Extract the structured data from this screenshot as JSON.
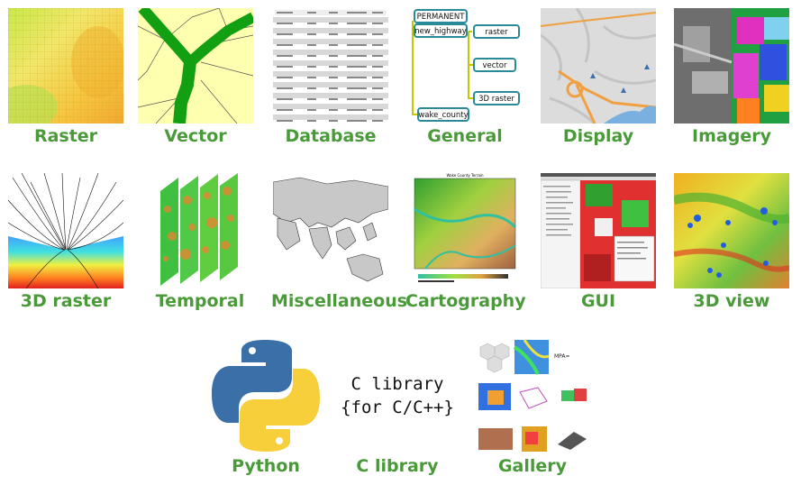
{
  "tiles_row1": [
    {
      "label": "Raster",
      "icon": "raster-grid-icon"
    },
    {
      "label": "Vector",
      "icon": "vector-network-icon"
    },
    {
      "label": "Database",
      "icon": "attribute-table-icon"
    },
    {
      "label": "General",
      "icon": "mapset-tree-icon"
    },
    {
      "label": "Display",
      "icon": "map-display-icon"
    },
    {
      "label": "Imagery",
      "icon": "satellite-image-icon"
    }
  ],
  "tiles_row2": [
    {
      "label": "3D raster",
      "icon": "flowlines-3d-icon"
    },
    {
      "label": "Temporal",
      "icon": "time-series-slices-icon"
    },
    {
      "label": "Miscellaneous",
      "icon": "world-map-icon"
    },
    {
      "label": "Cartography",
      "icon": "terrain-map-icon"
    },
    {
      "label": "GUI",
      "icon": "gui-window-icon"
    },
    {
      "label": "3D view",
      "icon": "terrain-3d-icon"
    }
  ],
  "tiles_row3": [
    {
      "label": "Python",
      "icon": "python-logo-icon"
    },
    {
      "label": "C library",
      "icon": "c-library-icon"
    },
    {
      "label": "Gallery",
      "icon": "gallery-collage-icon"
    }
  ],
  "general_tree": {
    "root": "PERMANENT",
    "branch": "new_highway",
    "leaves": [
      "raster",
      "vector",
      "3D raster"
    ],
    "bottom": "wake_county"
  },
  "clib": {
    "line1": "C library",
    "line2": "{for C/C++}"
  },
  "cartography": {
    "map_title": "Wake County Terrain"
  },
  "colors": {
    "label_green": "#4a9a3a",
    "tree_border": "#2a8a9a",
    "tree_line": "#c8c800"
  }
}
